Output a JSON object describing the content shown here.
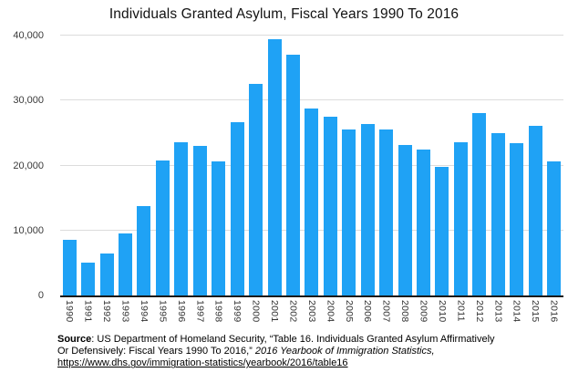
{
  "title": "Individuals Granted Asylum, Fiscal Years 1990 To 2016",
  "chart_data": {
    "type": "bar",
    "title": "Individuals Granted Asylum, Fiscal Years 1990 To 2016",
    "categories": [
      "1990",
      "1991",
      "1992",
      "1993",
      "1994",
      "1995",
      "1996",
      "1997",
      "1998",
      "1999",
      "2000",
      "2001",
      "2002",
      "2003",
      "2004",
      "2005",
      "2006",
      "2007",
      "2008",
      "2009",
      "2010",
      "2011",
      "2012",
      "2013",
      "2014",
      "2015",
      "2016"
    ],
    "values": [
      8500,
      5100,
      6400,
      9600,
      13800,
      20800,
      23600,
      23000,
      20600,
      26700,
      32600,
      39400,
      37100,
      28800,
      27500,
      25500,
      26400,
      25500,
      23200,
      22400,
      19800,
      23600,
      28100,
      25000,
      23500,
      26100,
      20600
    ],
    "xlabel": "",
    "ylabel": "",
    "ylim": [
      0,
      40000
    ],
    "yticks": [
      0,
      10000,
      20000,
      30000,
      40000
    ],
    "ytick_labels": [
      "0",
      "10,000",
      "20,000",
      "30,000",
      "40,000"
    ],
    "grid": true,
    "legend_position": "none",
    "bar_color": "#1fa2f5",
    "gridline_color": "#dcdcdc",
    "axis_color": "#1a1a1a"
  },
  "footer": {
    "source_label": "Source",
    "line1_rest": ": US Department of Homeland Security, “Table 16. Individuals Granted Asylum Affirmatively",
    "line2_prefix": "Or Defensively: Fiscal Years 1990 To 2016,” ",
    "line2_italic": "2016 Yearbook of Immigration Statistics,",
    "link": "https://www.dhs.gov/immigration-statistics/yearbook/2016/table16"
  }
}
